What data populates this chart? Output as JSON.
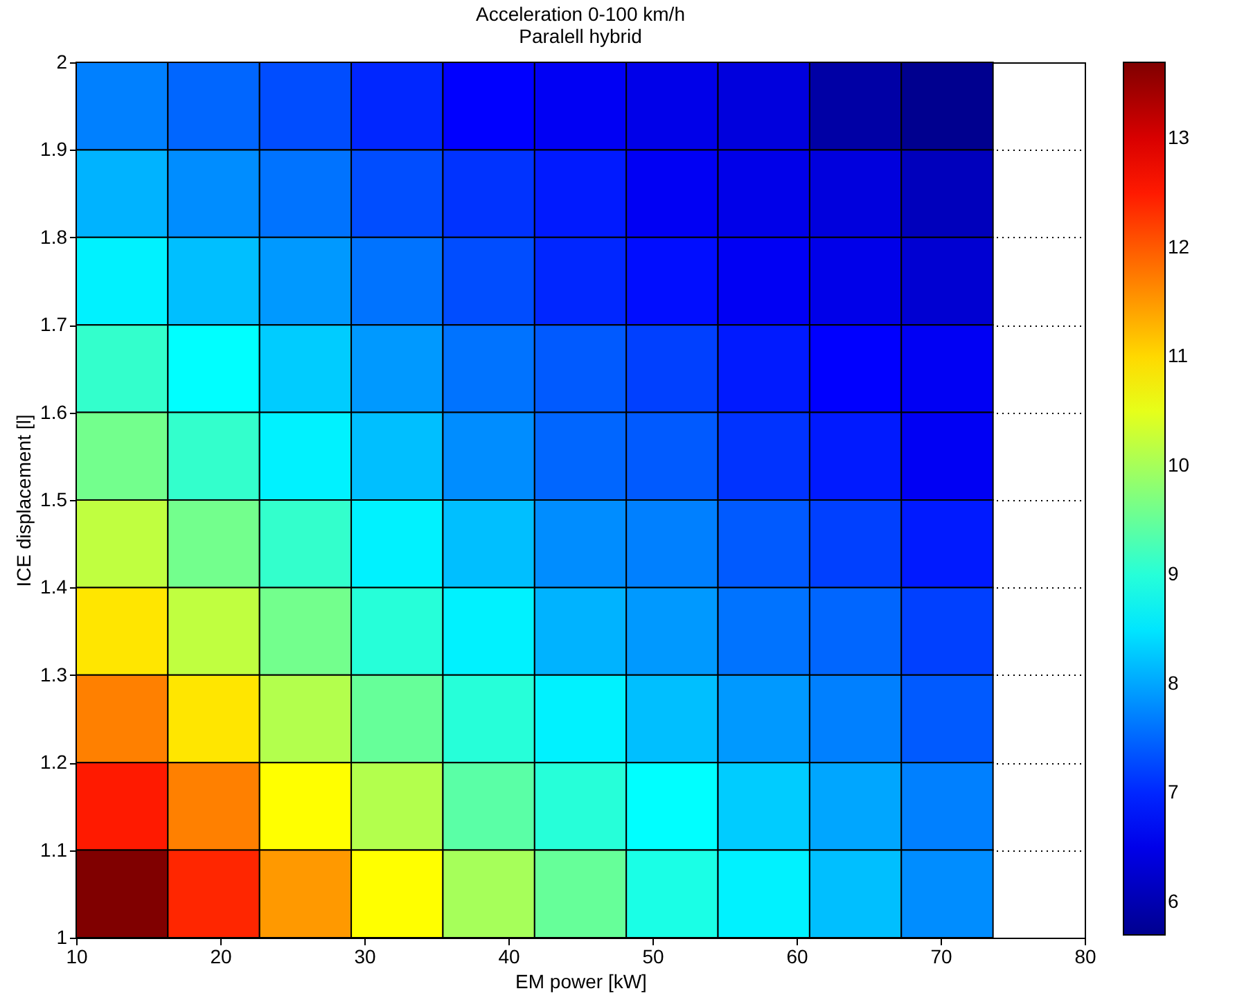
{
  "chart_data": {
    "type": "heatmap",
    "title": "Acceleration 0-100 km/h",
    "subtitle": "Paralell hybrid",
    "xlabel": "EM power [kW]",
    "ylabel": "ICE displacement [l]",
    "cells": [
      [
        7.7,
        7.5,
        7.3,
        7.0,
        6.7,
        6.6,
        6.5,
        6.4,
        5.9,
        5.7,
        null
      ],
      [
        8.1,
        7.8,
        7.6,
        7.3,
        7.1,
        6.9,
        6.6,
        6.5,
        6.4,
        6.1,
        null
      ],
      [
        8.6,
        8.2,
        7.9,
        7.6,
        7.3,
        7.0,
        6.8,
        6.6,
        6.5,
        6.3,
        null
      ],
      [
        9.1,
        8.7,
        8.3,
        7.9,
        7.6,
        7.4,
        7.2,
        6.9,
        6.7,
        6.6,
        null
      ],
      [
        9.6,
        9.1,
        8.6,
        8.2,
        7.8,
        7.5,
        7.4,
        7.1,
        6.9,
        6.6,
        null
      ],
      [
        10.2,
        9.6,
        9.1,
        8.6,
        8.2,
        7.8,
        7.7,
        7.4,
        7.2,
        6.9,
        null
      ],
      [
        10.9,
        10.2,
        9.6,
        9.0,
        8.6,
        8.1,
        7.9,
        7.6,
        7.5,
        7.2,
        null
      ],
      [
        11.7,
        10.9,
        10.1,
        9.5,
        9.0,
        8.6,
        8.2,
        7.9,
        7.7,
        7.4,
        null
      ],
      [
        12.5,
        11.7,
        10.7,
        10.1,
        9.4,
        9.0,
        8.7,
        8.3,
        8.0,
        7.7,
        null
      ],
      [
        13.7,
        12.4,
        11.5,
        10.7,
        10.0,
        9.5,
        8.9,
        8.6,
        8.2,
        7.8,
        null
      ]
    ],
    "clim": [
      5.7,
      13.7
    ],
    "cticks": [
      6,
      7,
      8,
      9,
      10,
      11,
      12,
      13
    ],
    "xlim": [
      10,
      80
    ],
    "xticks": [
      10,
      20,
      30,
      40,
      50,
      60,
      70,
      80
    ],
    "ylim": [
      1,
      2
    ],
    "yticks": [
      1,
      1.1,
      1.2,
      1.3,
      1.4,
      1.5,
      1.6,
      1.7,
      1.8,
      1.9,
      2
    ],
    "grid": true
  }
}
